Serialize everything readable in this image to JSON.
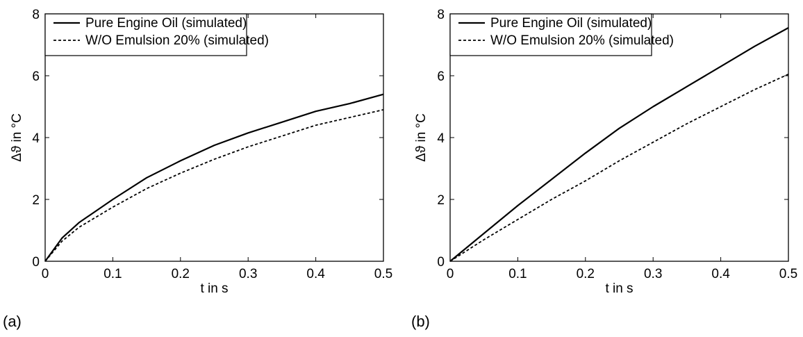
{
  "panels": [
    {
      "panel_label": "(a)",
      "xlabel": "t in s",
      "ylabel": "Δϑ in °C",
      "legend": [
        "Pure Engine Oil (simulated)",
        "W/O Emulsion 20% (simulated)"
      ]
    },
    {
      "panel_label": "(b)",
      "xlabel": "t in s",
      "ylabel": "Δϑ in °C",
      "legend": [
        "Pure Engine Oil (simulated)",
        "W/O Emulsion 20% (simulated)"
      ]
    }
  ],
  "chart_data": [
    {
      "type": "line",
      "xlabel": "t in s",
      "ylabel": "Δϑ in °C",
      "xlim": [
        0,
        0.5
      ],
      "ylim": [
        0,
        8
      ],
      "xticks": [
        "0",
        "0.1",
        "0.2",
        "0.3",
        "0.4",
        "0.5"
      ],
      "yticks": [
        "0",
        "2",
        "4",
        "6",
        "8"
      ],
      "grid": false,
      "legend_position": "top-left",
      "x": [
        0,
        0.025,
        0.05,
        0.1,
        0.15,
        0.2,
        0.25,
        0.3,
        0.35,
        0.4,
        0.45,
        0.5
      ],
      "series": [
        {
          "name": "Pure Engine Oil (simulated)",
          "style": "solid",
          "values": [
            0,
            0.75,
            1.25,
            2.0,
            2.7,
            3.25,
            3.75,
            4.15,
            4.5,
            4.85,
            5.1,
            5.4
          ]
        },
        {
          "name": "W/O Emulsion 20% (simulated)",
          "style": "dashed",
          "values": [
            0,
            0.65,
            1.1,
            1.75,
            2.35,
            2.85,
            3.3,
            3.7,
            4.05,
            4.4,
            4.65,
            4.9
          ]
        }
      ]
    },
    {
      "type": "line",
      "xlabel": "t in s",
      "ylabel": "Δϑ in °C",
      "xlim": [
        0,
        0.5
      ],
      "ylim": [
        0,
        8
      ],
      "xticks": [
        "0",
        "0.1",
        "0.2",
        "0.3",
        "0.4",
        "0.5"
      ],
      "yticks": [
        "0",
        "2",
        "4",
        "6",
        "8"
      ],
      "grid": false,
      "legend_position": "top-left",
      "x": [
        0,
        0.05,
        0.1,
        0.15,
        0.2,
        0.25,
        0.3,
        0.35,
        0.4,
        0.45,
        0.5
      ],
      "series": [
        {
          "name": "Pure Engine Oil (simulated)",
          "style": "solid",
          "values": [
            0,
            0.9,
            1.8,
            2.65,
            3.5,
            4.3,
            5.0,
            5.65,
            6.3,
            6.95,
            7.55
          ]
        },
        {
          "name": "W/O Emulsion 20% (simulated)",
          "style": "dashed",
          "values": [
            0,
            0.7,
            1.35,
            2.0,
            2.6,
            3.25,
            3.85,
            4.45,
            5.0,
            5.55,
            6.05
          ]
        }
      ]
    }
  ]
}
